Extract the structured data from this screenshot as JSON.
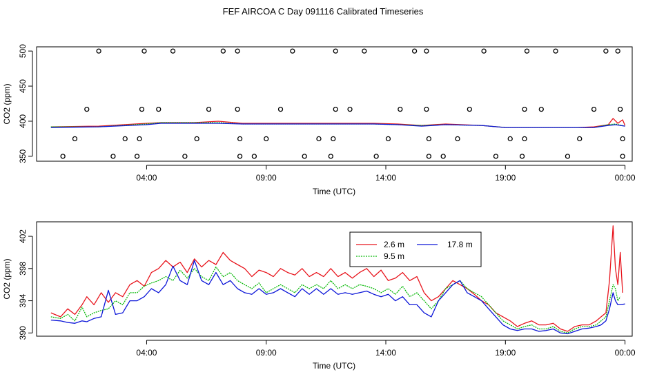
{
  "figure": {
    "title": "FEF AIRCOA C  Day 091116  Calibrated Timeseries"
  },
  "colors": {
    "red": "#e8141c",
    "green": "#08b908",
    "blue": "#0a14d8",
    "axis": "#000000"
  },
  "chart_data": [
    {
      "type": "scatter+line",
      "title": "",
      "xlabel": "Time (UTC)",
      "ylabel": "CO2 (ppm)",
      "x_unit": "hours UTC",
      "xlim": [
        -0.6,
        24.3
      ],
      "ylim": [
        343,
        506
      ],
      "xticks": [
        {
          "value": 4,
          "label": "04:00"
        },
        {
          "value": 9,
          "label": "09:00"
        },
        {
          "value": 14,
          "label": "14:00"
        },
        {
          "value": 19,
          "label": "19:00"
        },
        {
          "value": 24,
          "label": "00:00"
        }
      ],
      "yticks": [
        {
          "value": 350,
          "label": "350"
        },
        {
          "value": 400,
          "label": "400"
        },
        {
          "value": 450,
          "label": "450"
        },
        {
          "value": 500,
          "label": "500"
        }
      ],
      "status_points": {
        "marker": "open-circle",
        "points": [
          [
            0.5,
            350
          ],
          [
            1.0,
            375
          ],
          [
            1.5,
            417
          ],
          [
            2.0,
            500
          ],
          [
            2.6,
            350
          ],
          [
            3.1,
            375
          ],
          [
            3.6,
            350
          ],
          [
            3.7,
            375
          ],
          [
            3.8,
            417
          ],
          [
            3.9,
            500
          ],
          [
            4.5,
            417
          ],
          [
            5.1,
            500
          ],
          [
            5.6,
            350
          ],
          [
            6.1,
            375
          ],
          [
            6.6,
            417
          ],
          [
            7.2,
            500
          ],
          [
            7.8,
            500
          ],
          [
            7.8,
            417
          ],
          [
            7.9,
            375
          ],
          [
            7.9,
            350
          ],
          [
            8.5,
            350
          ],
          [
            9.0,
            375
          ],
          [
            9.6,
            417
          ],
          [
            10.1,
            500
          ],
          [
            10.6,
            350
          ],
          [
            11.2,
            375
          ],
          [
            11.7,
            350
          ],
          [
            11.8,
            375
          ],
          [
            11.9,
            417
          ],
          [
            11.9,
            500
          ],
          [
            12.5,
            417
          ],
          [
            13.1,
            500
          ],
          [
            13.6,
            350
          ],
          [
            14.1,
            375
          ],
          [
            14.6,
            417
          ],
          [
            15.2,
            500
          ],
          [
            15.7,
            500
          ],
          [
            15.7,
            417
          ],
          [
            15.8,
            375
          ],
          [
            15.8,
            350
          ],
          [
            16.4,
            350
          ],
          [
            17.0,
            375
          ],
          [
            17.5,
            417
          ],
          [
            18.1,
            500
          ],
          [
            18.6,
            350
          ],
          [
            19.2,
            375
          ],
          [
            19.7,
            350
          ],
          [
            19.8,
            375
          ],
          [
            19.8,
            417
          ],
          [
            19.9,
            500
          ],
          [
            20.5,
            417
          ],
          [
            21.1,
            500
          ],
          [
            21.6,
            350
          ],
          [
            22.1,
            375
          ],
          [
            22.7,
            417
          ],
          [
            23.2,
            500
          ],
          [
            23.7,
            500
          ],
          [
            23.8,
            417
          ],
          [
            23.9,
            375
          ],
          [
            23.9,
            350
          ]
        ]
      },
      "series": [
        {
          "name": "2.6 m",
          "color": "#e8141c",
          "x": [
            0,
            2,
            4,
            4.6,
            6,
            7,
            8,
            10,
            12,
            13.5,
            14.5,
            15.5,
            16.5,
            18,
            19,
            20,
            21,
            22,
            22.7,
            23.3,
            23.5,
            23.7,
            23.9,
            24
          ],
          "values": [
            392,
            393,
            397,
            398,
            398,
            400,
            397,
            397,
            397,
            397,
            396,
            394,
            396,
            394,
            391,
            391,
            391,
            391,
            392,
            395,
            404,
            397,
            402,
            394
          ]
        },
        {
          "name": "9.5 m",
          "color": "#08b908",
          "x": [
            0,
            2,
            4,
            4.6,
            6,
            7,
            8,
            10,
            12,
            13.5,
            14.5,
            15.5,
            16.5,
            18,
            19,
            20,
            21,
            22,
            22.7,
            23.3,
            23.6,
            24
          ],
          "values": [
            392,
            392,
            396,
            398,
            398,
            398,
            396,
            396,
            396,
            396,
            395,
            394,
            395,
            394,
            391,
            391,
            391,
            391,
            391,
            395,
            396,
            393
          ]
        },
        {
          "name": "17.8 m",
          "color": "#0a14d8",
          "x": [
            0,
            2,
            4,
            4.6,
            6,
            7,
            8,
            10,
            12,
            13.5,
            14.5,
            15.5,
            16.5,
            18,
            19,
            20,
            21,
            22,
            22.7,
            23.3,
            23.6,
            24
          ],
          "values": [
            391,
            392,
            395,
            397,
            397,
            397,
            396,
            396,
            396,
            396,
            395,
            393,
            395,
            394,
            391,
            391,
            391,
            391,
            391,
            394,
            395,
            393
          ]
        }
      ]
    },
    {
      "type": "line",
      "title": "",
      "xlabel": "Time (UTC)",
      "ylabel": "CO2 (ppm)",
      "x_unit": "hours UTC",
      "xlim": [
        -0.6,
        24.3
      ],
      "ylim": [
        389.6,
        403.8
      ],
      "xticks": [
        {
          "value": 4,
          "label": "04:00"
        },
        {
          "value": 9,
          "label": "09:00"
        },
        {
          "value": 14,
          "label": "14:00"
        },
        {
          "value": 19,
          "label": "19:00"
        },
        {
          "value": 24,
          "label": "00:00"
        }
      ],
      "yticks": [
        {
          "value": 390,
          "label": "390"
        },
        {
          "value": 394,
          "label": "394"
        },
        {
          "value": 398,
          "label": "398"
        },
        {
          "value": 402,
          "label": "402"
        }
      ],
      "legend": {
        "position": "top-center",
        "entries": [
          {
            "label": "2.6 m",
            "color": "#e8141c"
          },
          {
            "label": "17.8 m",
            "color": "#0a14d8"
          },
          {
            "label": "9.5 m",
            "color": "#08b908"
          }
        ]
      },
      "series": [
        {
          "name": "2.6 m",
          "color": "#e8141c",
          "x": [
            0,
            0.4,
            0.7,
            1.0,
            1.3,
            1.5,
            1.8,
            2.1,
            2.4,
            2.7,
            3.0,
            3.3,
            3.6,
            3.9,
            4.2,
            4.5,
            4.8,
            5.1,
            5.4,
            5.7,
            6.0,
            6.3,
            6.6,
            6.9,
            7.2,
            7.5,
            7.8,
            8.1,
            8.4,
            8.7,
            9.0,
            9.3,
            9.6,
            9.9,
            10.2,
            10.5,
            10.8,
            11.1,
            11.4,
            11.7,
            12.0,
            12.3,
            12.6,
            12.9,
            13.2,
            13.5,
            13.8,
            14.1,
            14.4,
            14.7,
            15.0,
            15.3,
            15.6,
            15.9,
            16.2,
            16.5,
            16.8,
            17.1,
            17.4,
            17.7,
            18.0,
            18.3,
            18.6,
            18.9,
            19.2,
            19.5,
            19.8,
            20.1,
            20.4,
            20.7,
            21.0,
            21.3,
            21.6,
            21.9,
            22.2,
            22.5,
            22.8,
            23.0,
            23.2,
            23.35,
            23.5,
            23.6,
            23.7,
            23.8,
            23.9
          ],
          "values": [
            392.5,
            392.0,
            393.0,
            392.3,
            393.5,
            394.5,
            393.5,
            395.0,
            393.8,
            395.0,
            394.5,
            396.0,
            396.5,
            395.8,
            397.5,
            398.0,
            399.0,
            398.2,
            398.8,
            397.5,
            399.2,
            398.2,
            399.0,
            398.5,
            400.0,
            399.0,
            398.5,
            398.0,
            397.0,
            397.8,
            397.5,
            397.0,
            398.0,
            397.5,
            397.2,
            398.0,
            397.0,
            397.5,
            397.0,
            398.0,
            397.0,
            397.5,
            396.8,
            397.5,
            398.0,
            397.0,
            397.8,
            396.5,
            396.8,
            397.5,
            396.5,
            397.0,
            395.0,
            394.0,
            394.5,
            395.5,
            396.5,
            396.0,
            395.5,
            394.8,
            394.0,
            393.5,
            392.5,
            392.0,
            391.5,
            390.8,
            391.2,
            391.5,
            391.0,
            391.0,
            391.2,
            390.5,
            390.2,
            390.8,
            391.0,
            391.0,
            391.5,
            392.0,
            392.5,
            396.5,
            403.3,
            398.0,
            396.0,
            400.0,
            395.0
          ]
        },
        {
          "name": "9.5 m",
          "color": "#08b908",
          "x": [
            0,
            0.4,
            0.7,
            1.0,
            1.3,
            1.5,
            1.8,
            2.1,
            2.4,
            2.7,
            3.0,
            3.3,
            3.6,
            3.9,
            4.2,
            4.5,
            4.8,
            5.1,
            5.4,
            5.7,
            6.0,
            6.3,
            6.6,
            6.9,
            7.2,
            7.5,
            7.8,
            8.1,
            8.4,
            8.7,
            9.0,
            9.3,
            9.6,
            9.9,
            10.2,
            10.5,
            10.8,
            11.1,
            11.4,
            11.7,
            12.0,
            12.3,
            12.6,
            12.9,
            13.2,
            13.5,
            13.8,
            14.1,
            14.4,
            14.7,
            15.0,
            15.3,
            15.6,
            15.9,
            16.2,
            16.5,
            16.8,
            17.1,
            17.4,
            17.7,
            18.0,
            18.3,
            18.6,
            18.9,
            19.2,
            19.5,
            19.8,
            20.1,
            20.4,
            20.7,
            21.0,
            21.3,
            21.6,
            21.9,
            22.2,
            22.5,
            22.8,
            23.0,
            23.2,
            23.35,
            23.5,
            23.6,
            23.7,
            23.8
          ],
          "values": [
            392.0,
            391.8,
            392.3,
            391.5,
            393.2,
            392.0,
            392.5,
            392.8,
            393.0,
            394.0,
            393.5,
            395.0,
            395.0,
            395.8,
            396.2,
            396.5,
            397.0,
            396.5,
            397.8,
            396.8,
            398.0,
            397.0,
            396.5,
            398.2,
            397.0,
            397.5,
            396.5,
            396.0,
            395.5,
            396.2,
            395.0,
            395.5,
            396.0,
            395.5,
            395.0,
            396.0,
            395.5,
            396.0,
            395.5,
            396.5,
            395.5,
            396.0,
            395.5,
            396.0,
            395.8,
            395.5,
            395.0,
            395.5,
            394.8,
            395.8,
            394.5,
            395.0,
            394.0,
            393.0,
            394.0,
            395.5,
            396.0,
            396.5,
            395.5,
            395.0,
            394.5,
            393.5,
            392.5,
            391.5,
            391.0,
            390.5,
            390.8,
            391.0,
            390.5,
            390.5,
            390.8,
            390.2,
            390.0,
            390.5,
            390.8,
            390.8,
            391.0,
            391.5,
            392.0,
            394.0,
            396.0,
            395.5,
            394.0,
            394.5
          ]
        },
        {
          "name": "17.8 m",
          "color": "#0a14d8",
          "x": [
            0,
            0.4,
            0.7,
            1.0,
            1.3,
            1.5,
            1.8,
            2.1,
            2.4,
            2.7,
            3.0,
            3.3,
            3.6,
            3.9,
            4.2,
            4.5,
            4.8,
            5.1,
            5.4,
            5.7,
            6.0,
            6.3,
            6.6,
            6.9,
            7.2,
            7.5,
            7.8,
            8.1,
            8.4,
            8.7,
            9.0,
            9.3,
            9.6,
            9.9,
            10.2,
            10.5,
            10.8,
            11.1,
            11.4,
            11.7,
            12.0,
            12.3,
            12.6,
            12.9,
            13.2,
            13.5,
            13.8,
            14.1,
            14.4,
            14.7,
            15.0,
            15.3,
            15.6,
            15.9,
            16.2,
            16.5,
            16.8,
            17.1,
            17.4,
            17.7,
            18.0,
            18.3,
            18.6,
            18.9,
            19.2,
            19.5,
            19.8,
            20.1,
            20.4,
            20.7,
            21.0,
            21.3,
            21.6,
            21.9,
            22.2,
            22.5,
            22.8,
            23.0,
            23.2,
            23.35,
            23.5,
            23.6,
            23.7,
            23.8,
            24.0
          ],
          "values": [
            391.6,
            391.5,
            391.3,
            391.2,
            391.5,
            391.4,
            391.8,
            392.0,
            395.3,
            392.3,
            392.5,
            394.0,
            394.0,
            394.5,
            395.5,
            395.0,
            396.0,
            398.3,
            396.5,
            396.0,
            399.0,
            396.5,
            396.0,
            397.5,
            396.0,
            396.5,
            395.5,
            395.0,
            394.8,
            395.5,
            394.8,
            395.0,
            395.5,
            395.0,
            394.5,
            395.5,
            394.8,
            395.5,
            394.8,
            395.5,
            394.8,
            395.0,
            394.8,
            395.0,
            395.2,
            394.8,
            394.5,
            394.8,
            394.0,
            394.5,
            393.5,
            393.5,
            392.5,
            392.0,
            394.0,
            395.0,
            396.0,
            396.5,
            395.0,
            394.5,
            394.0,
            393.0,
            392.0,
            391.0,
            390.5,
            390.3,
            390.5,
            390.5,
            390.2,
            390.3,
            390.5,
            390.0,
            389.9,
            390.2,
            390.5,
            390.6,
            390.8,
            391.0,
            391.5,
            393.0,
            395.0,
            394.0,
            393.5,
            393.5,
            393.6
          ]
        }
      ]
    }
  ]
}
